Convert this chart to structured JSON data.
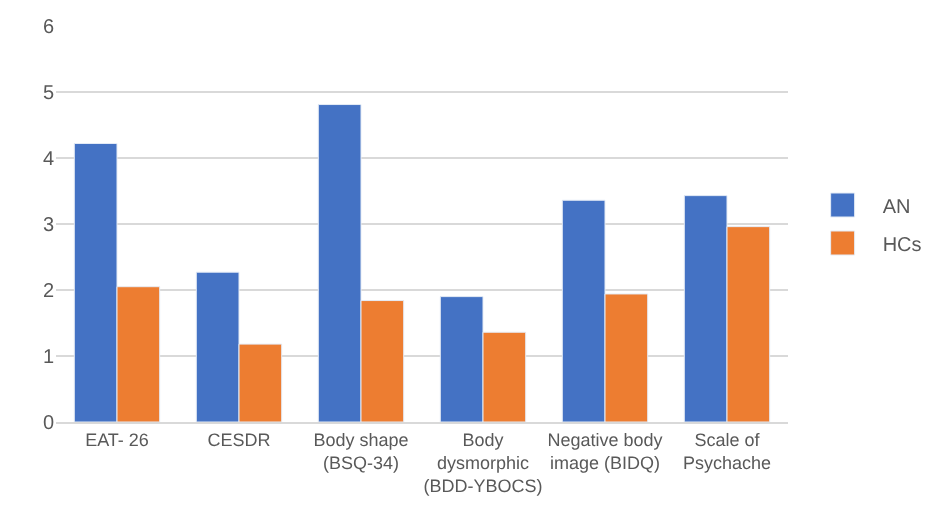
{
  "chart_data": {
    "type": "bar",
    "categories": [
      "EAT- 26",
      "CESDR",
      "Body shape\n(BSQ-34)",
      "Body\ndysmorphic\n(BDD-YBOCS)",
      "Negative body\nimage (BIDQ)",
      "Scale of\nPsychache"
    ],
    "series": [
      {
        "name": "AN",
        "color": "#4472c4",
        "values": [
          4.22,
          2.27,
          4.81,
          1.9,
          3.36,
          3.43
        ]
      },
      {
        "name": "HCs",
        "color": "#ed7d31",
        "values": [
          2.05,
          1.18,
          1.84,
          1.36,
          1.94,
          2.96
        ]
      }
    ],
    "ylim": [
      0,
      6
    ],
    "yticks": [
      0,
      1,
      2,
      3,
      4,
      5,
      6
    ],
    "grid": "y",
    "legend": "right"
  }
}
